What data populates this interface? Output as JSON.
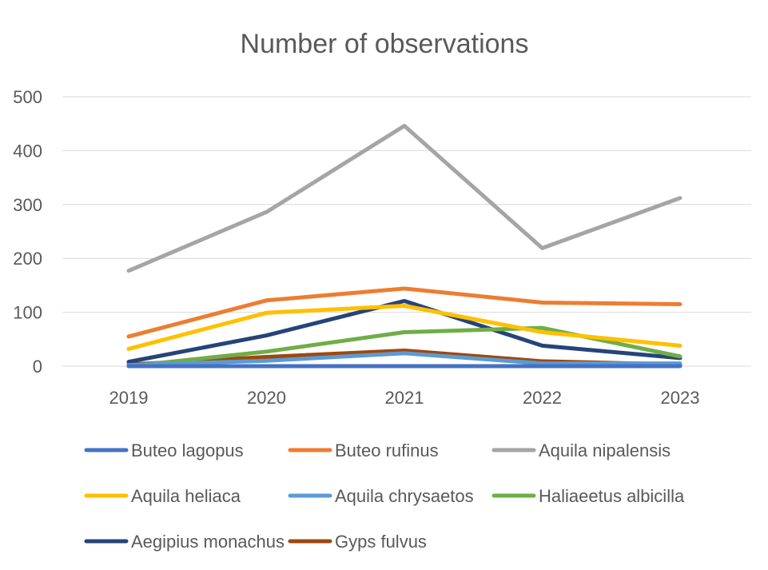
{
  "chart_data": {
    "type": "line",
    "title": "Number of observations",
    "xlabel": "",
    "ylabel": "",
    "categories": [
      "2019",
      "2020",
      "2021",
      "2022",
      "2023"
    ],
    "ylim": [
      0,
      500
    ],
    "yticks": [
      0,
      100,
      200,
      300,
      400,
      500
    ],
    "grid": true,
    "legend_position": "bottom",
    "series": [
      {
        "name": "Buteo lagopus",
        "color": "#4472c4",
        "values": [
          0,
          0,
          0,
          0,
          0
        ]
      },
      {
        "name": "Buteo rufinus",
        "color": "#ed7d31",
        "values": [
          55,
          122,
          144,
          118,
          115
        ]
      },
      {
        "name": "Aquila nipalensis",
        "color": "#a5a5a5",
        "values": [
          177,
          286,
          446,
          219,
          312
        ]
      },
      {
        "name": "Aquila heliaca",
        "color": "#ffc000",
        "values": [
          32,
          99,
          112,
          63,
          38
        ]
      },
      {
        "name": "Aquila chrysaetos",
        "color": "#5b9bd5",
        "values": [
          2,
          10,
          24,
          5,
          5
        ]
      },
      {
        "name": "Haliaeetus albicilla",
        "color": "#70ad47",
        "values": [
          0,
          27,
          63,
          71,
          18
        ]
      },
      {
        "name": "Aegipius monachus",
        "color": "#264478",
        "values": [
          8,
          57,
          121,
          38,
          15
        ]
      },
      {
        "name": "Gyps fulvus",
        "color": "#9e480e",
        "values": [
          3,
          17,
          29,
          9,
          3
        ]
      }
    ]
  }
}
